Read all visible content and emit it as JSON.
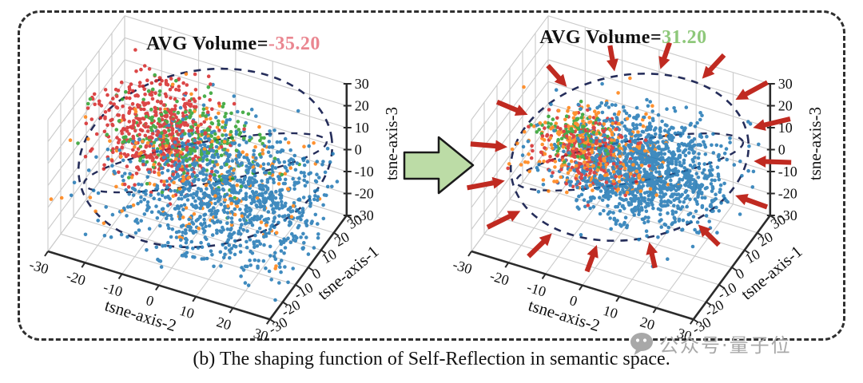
{
  "figure": {
    "caption": "(b) The shaping function of Self-Reflection in semantic space.",
    "watermark_text": "公众号·量子位",
    "watermark_icon": "wechat-chat-bubble",
    "border_style": "dashed-rounded-rect"
  },
  "chart_data": [
    {
      "type": "scatter",
      "projection": "3d",
      "panel": "left",
      "title_prefix": "AVG Volume=",
      "title_value": "-35.20",
      "title_value_color": "#ea8690",
      "xlabel": "tsne-axis-2",
      "ylabel": "tsne-axis-1",
      "zlabel": "tsne-axis-3",
      "ticks": [
        -30,
        -20,
        -10,
        0,
        10,
        20,
        30
      ],
      "axis_range": [
        -30,
        30
      ],
      "grid": true,
      "boundary_ellipse": {
        "style": "dashed",
        "color": "#252d5a",
        "equator": true
      },
      "inward_arrows": false,
      "clusters": [
        {
          "name": "blue",
          "color": "#1f77b4",
          "count": 1100,
          "center": [
            8,
            0,
            -8
          ],
          "spread": [
            13,
            12,
            11
          ]
        },
        {
          "name": "red",
          "color": "#d62728",
          "count": 480,
          "center": [
            -14,
            8,
            4
          ],
          "spread": [
            8,
            9,
            8
          ]
        },
        {
          "name": "green",
          "color": "#2ca02c",
          "count": 260,
          "center": [
            -4,
            6,
            6
          ],
          "spread": [
            10,
            9,
            7
          ]
        },
        {
          "name": "orange",
          "color": "#ff7f0e",
          "count": 170,
          "center": [
            0,
            0,
            0
          ],
          "spread": [
            14,
            13,
            10
          ]
        }
      ]
    },
    {
      "type": "scatter",
      "projection": "3d",
      "panel": "right",
      "title_prefix": "AVG Volume=",
      "title_value": "31.20",
      "title_value_color": "#8ec87a",
      "xlabel": "tsne-axis-2",
      "ylabel": "tsne-axis-1",
      "zlabel": "tsne-axis-3",
      "ticks": [
        -30,
        -20,
        -10,
        0,
        10,
        20,
        30
      ],
      "axis_range": [
        -30,
        30
      ],
      "grid": true,
      "boundary_ellipse": {
        "style": "dashed",
        "color": "#252d5a",
        "equator": true
      },
      "inward_arrows": true,
      "arrow_color": "#c02a21",
      "arrow_angles_deg": [
        90,
        69,
        48,
        26,
        5,
        -17,
        -40,
        -64,
        -88,
        -112,
        -135,
        -157,
        -179,
        159,
        137,
        113
      ],
      "clusters": [
        {
          "name": "blue",
          "color": "#1f77b4",
          "count": 1300,
          "center": [
            6,
            0,
            2
          ],
          "spread": [
            10,
            10,
            8
          ]
        },
        {
          "name": "orange",
          "color": "#ff7f0e",
          "count": 300,
          "center": [
            -7,
            2,
            2
          ],
          "spread": [
            8,
            8,
            7
          ]
        },
        {
          "name": "red",
          "color": "#d62728",
          "count": 240,
          "center": [
            -10,
            2,
            0
          ],
          "spread": [
            6,
            7,
            6
          ]
        },
        {
          "name": "green",
          "color": "#2ca02c",
          "count": 110,
          "center": [
            -13,
            4,
            4
          ],
          "spread": [
            4,
            5,
            4
          ]
        }
      ]
    }
  ],
  "style": {
    "grid_color": "#cbcbcb",
    "spine_color": "#2b2b2b",
    "transform_arrow_fill": "#bcdca6",
    "transform_arrow_stroke": "#1b1b1b"
  }
}
